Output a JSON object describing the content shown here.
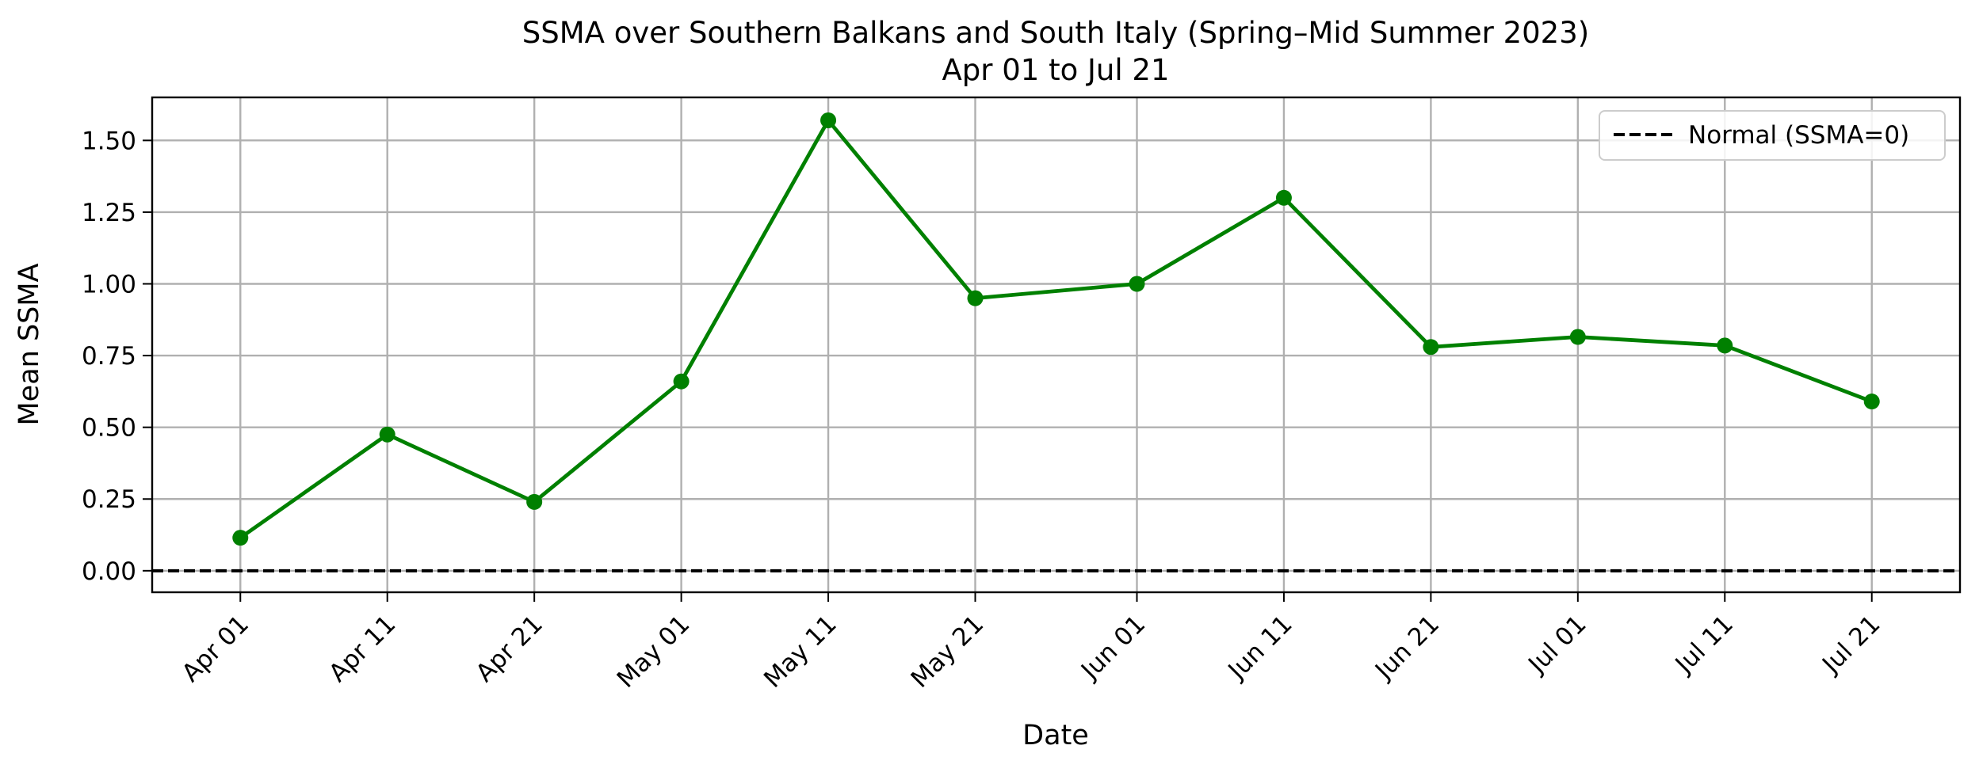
{
  "chart_data": {
    "type": "line",
    "title": "SSMA over Southern Balkans and South Italy (Spring–Mid Summer 2023)",
    "subtitle": "Apr 01 to Jul 21",
    "xlabel": "Date",
    "ylabel": "Mean SSMA",
    "x": [
      "2023-04-01",
      "2023-04-11",
      "2023-04-21",
      "2023-05-01",
      "2023-05-11",
      "2023-05-21",
      "2023-06-01",
      "2023-06-11",
      "2023-06-21",
      "2023-07-01",
      "2023-07-11",
      "2023-07-21"
    ],
    "x_tick_labels": [
      "Apr 01",
      "Apr 11",
      "Apr 21",
      "May 01",
      "May 11",
      "May 21",
      "Jun 01",
      "Jun 11",
      "Jun 21",
      "Jul 01",
      "Jul 11",
      "Jul 21"
    ],
    "xlim": [
      "2023-03-26",
      "2023-07-27"
    ],
    "ylim": [
      -0.075,
      1.65
    ],
    "y_ticks": [
      0.0,
      0.25,
      0.5,
      0.75,
      1.0,
      1.25,
      1.5
    ],
    "y_tick_labels": [
      "0.00",
      "0.25",
      "0.50",
      "0.75",
      "1.00",
      "1.25",
      "1.50"
    ],
    "series": [
      {
        "values": [
          0.115,
          0.475,
          0.24,
          0.66,
          1.57,
          0.95,
          1.0,
          1.3,
          0.78,
          0.815,
          0.785,
          0.59
        ],
        "color": "#008000",
        "marker": "circle"
      }
    ],
    "reference_lines": [
      {
        "y": 0.0,
        "name": "Normal (SSMA=0)",
        "color": "#000000",
        "style": "dashed"
      }
    ],
    "legend_position": "top-right",
    "grid": true
  }
}
